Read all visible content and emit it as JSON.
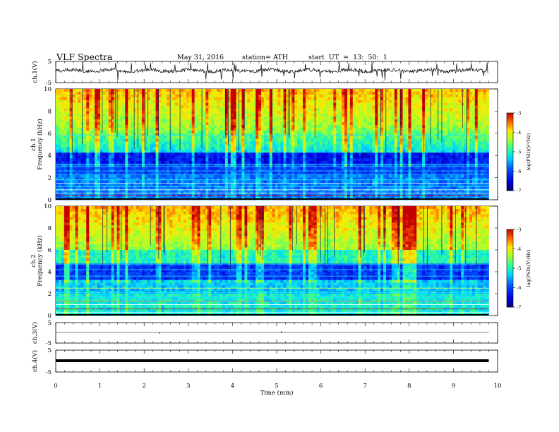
{
  "header": {
    "title": "VLF  Spectra",
    "date": "May 31, 2016",
    "station": "station= ATH",
    "start": "start  UT  =   13: 50: 1"
  },
  "chart_data": {
    "type": "spectrogram",
    "xlabel": "Time  (min)",
    "xlim": [
      0,
      10
    ],
    "x_ticks": [
      "0",
      "1",
      "2",
      "3",
      "4",
      "5",
      "6",
      "7",
      "8",
      "9",
      "10"
    ],
    "data_end_min": 9.8,
    "panels": [
      {
        "ylabel": "ch.1(V)",
        "y_ticks": [
          "5",
          "-5"
        ],
        "kind": "waveform"
      },
      {
        "ylabel_top": "ch.1",
        "ylabel": "Frequency  (kHz)",
        "ylim": [
          0,
          10
        ],
        "y_ticks": [
          "10",
          "8",
          "6",
          "4",
          "2",
          "0"
        ],
        "kind": "spectrogram",
        "colorbar": {
          "label": "log(PSD)(V²/Hz)",
          "range": [
            -7,
            -3
          ],
          "ticks": [
            "-3",
            "-4",
            "-5",
            "-6",
            "-7"
          ]
        }
      },
      {
        "ylabel_top": "ch.2",
        "ylabel": "Frequency  (kHz)",
        "ylim": [
          0,
          10
        ],
        "y_ticks": [
          "10",
          "8",
          "6",
          "4",
          "2",
          "0"
        ],
        "kind": "spectrogram",
        "colorbar": {
          "label": "log(PSD)(V²/Hz)",
          "range": [
            -7,
            -3
          ],
          "ticks": [
            "-3",
            "-4",
            "-5",
            "-6",
            "-7"
          ]
        }
      },
      {
        "ylabel": "ch.3(V)",
        "y_ticks": [
          "5",
          "-5"
        ],
        "kind": "flat"
      },
      {
        "ylabel": "ch.4(V)",
        "y_ticks": [
          "5",
          "-5"
        ],
        "kind": "thick"
      }
    ]
  }
}
